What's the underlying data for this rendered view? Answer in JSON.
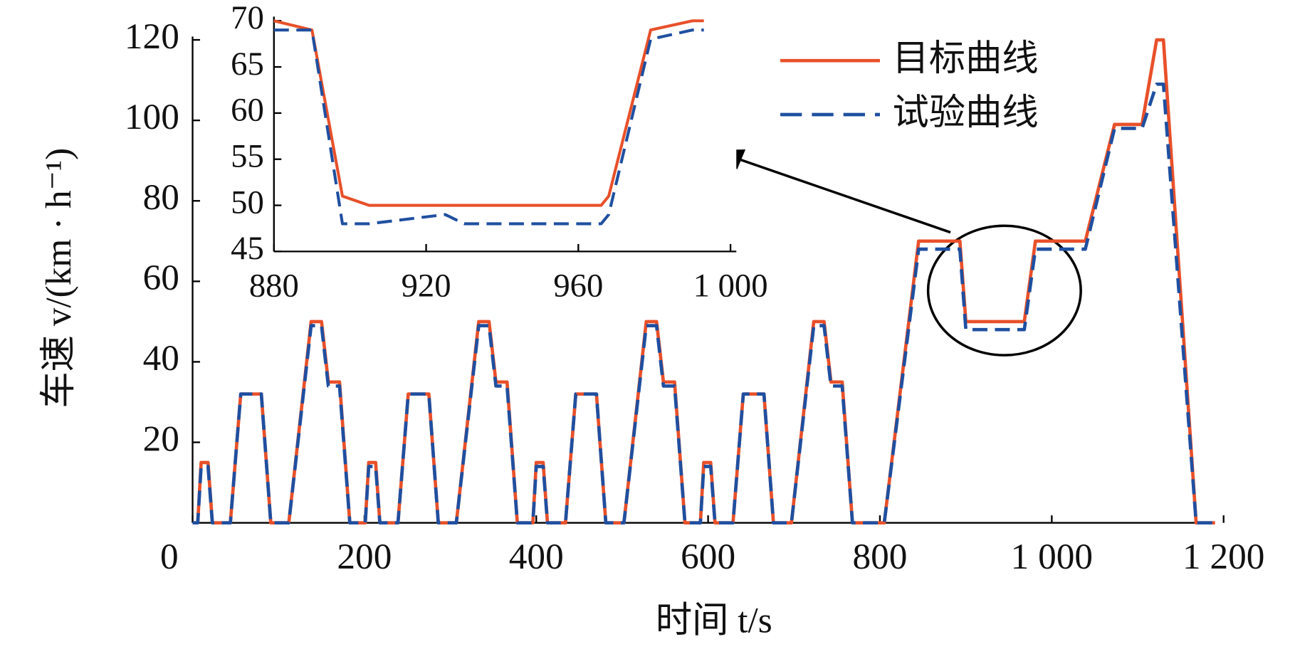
{
  "chart_data": [
    {
      "type": "line",
      "xlabel": "时间 t/s",
      "ylabel": "车速 v/(km · h⁻¹)",
      "x": [
        0,
        6,
        10,
        18,
        23,
        44,
        56,
        80,
        91,
        112,
        138,
        150,
        158,
        171,
        183,
        195,
        201,
        205,
        213,
        218,
        239,
        251,
        275,
        286,
        307,
        333,
        345,
        353,
        366,
        378,
        390,
        396,
        400,
        408,
        413,
        434,
        446,
        470,
        481,
        502,
        528,
        540,
        548,
        561,
        573,
        585,
        591,
        595,
        603,
        608,
        629,
        641,
        665,
        676,
        697,
        723,
        735,
        743,
        756,
        768,
        780,
        805,
        845,
        893,
        900,
        968,
        981,
        1039,
        1073,
        1105,
        1122,
        1130,
        1168,
        1190
      ],
      "series": [
        {
          "name": "目标曲线",
          "color": "#e8502a",
          "dash": false,
          "values": [
            0,
            0,
            15,
            15,
            0,
            0,
            32,
            32,
            0,
            0,
            50,
            50,
            35,
            35,
            0,
            0,
            0,
            15,
            15,
            0,
            0,
            32,
            32,
            0,
            0,
            50,
            50,
            35,
            35,
            0,
            0,
            0,
            15,
            15,
            0,
            0,
            32,
            32,
            0,
            0,
            50,
            50,
            35,
            35,
            0,
            0,
            0,
            15,
            15,
            0,
            0,
            32,
            32,
            0,
            0,
            50,
            50,
            35,
            35,
            0,
            0,
            0,
            70,
            70,
            50,
            50,
            70,
            70,
            99,
            99,
            120,
            120,
            0,
            0
          ]
        },
        {
          "name": "试验曲线",
          "color": "#1f4fa0",
          "dash": true,
          "values": [
            0,
            0,
            14,
            14,
            0,
            0,
            32,
            32,
            0,
            0,
            49,
            49,
            34,
            34,
            0,
            0,
            0,
            14,
            14,
            0,
            0,
            32,
            32,
            0,
            0,
            49,
            49,
            34,
            34,
            0,
            0,
            0,
            14,
            14,
            0,
            0,
            32,
            32,
            0,
            0,
            49,
            49,
            34,
            34,
            0,
            0,
            0,
            14,
            14,
            0,
            0,
            32,
            32,
            0,
            0,
            49,
            49,
            34,
            34,
            0,
            0,
            0,
            68,
            68,
            48,
            48,
            68,
            68,
            98,
            98,
            109,
            109,
            0,
            0
          ]
        }
      ],
      "xlim": [
        0,
        1200
      ],
      "ylim": [
        0,
        120
      ],
      "xticks": [
        0,
        200,
        400,
        600,
        800,
        {
          "value": 1000,
          "label": "1 000"
        },
        {
          "value": 1200,
          "label": "1 200"
        }
      ],
      "yticks": [
        20,
        40,
        60,
        80,
        100,
        120
      ],
      "legend": "upper right"
    },
    {
      "type": "line",
      "x": [
        880,
        890,
        898,
        905,
        925,
        930,
        966,
        968,
        979,
        990,
        993
      ],
      "series": [
        {
          "color": "#e8502a",
          "dash": false,
          "values": [
            70,
            69,
            51,
            50,
            50,
            50,
            50,
            51,
            69,
            70,
            70
          ]
        },
        {
          "color": "#1f4fa0",
          "dash": true,
          "values": [
            69,
            69,
            48,
            48,
            49,
            48,
            48,
            49,
            68,
            69,
            69
          ]
        }
      ],
      "xlim": [
        880,
        1000
      ],
      "ylim": [
        45,
        70
      ],
      "xticks": [
        880,
        920,
        960,
        {
          "value": 1000,
          "label": "1 000"
        }
      ],
      "yticks": [
        45,
        50,
        55,
        60,
        65,
        70
      ]
    }
  ]
}
